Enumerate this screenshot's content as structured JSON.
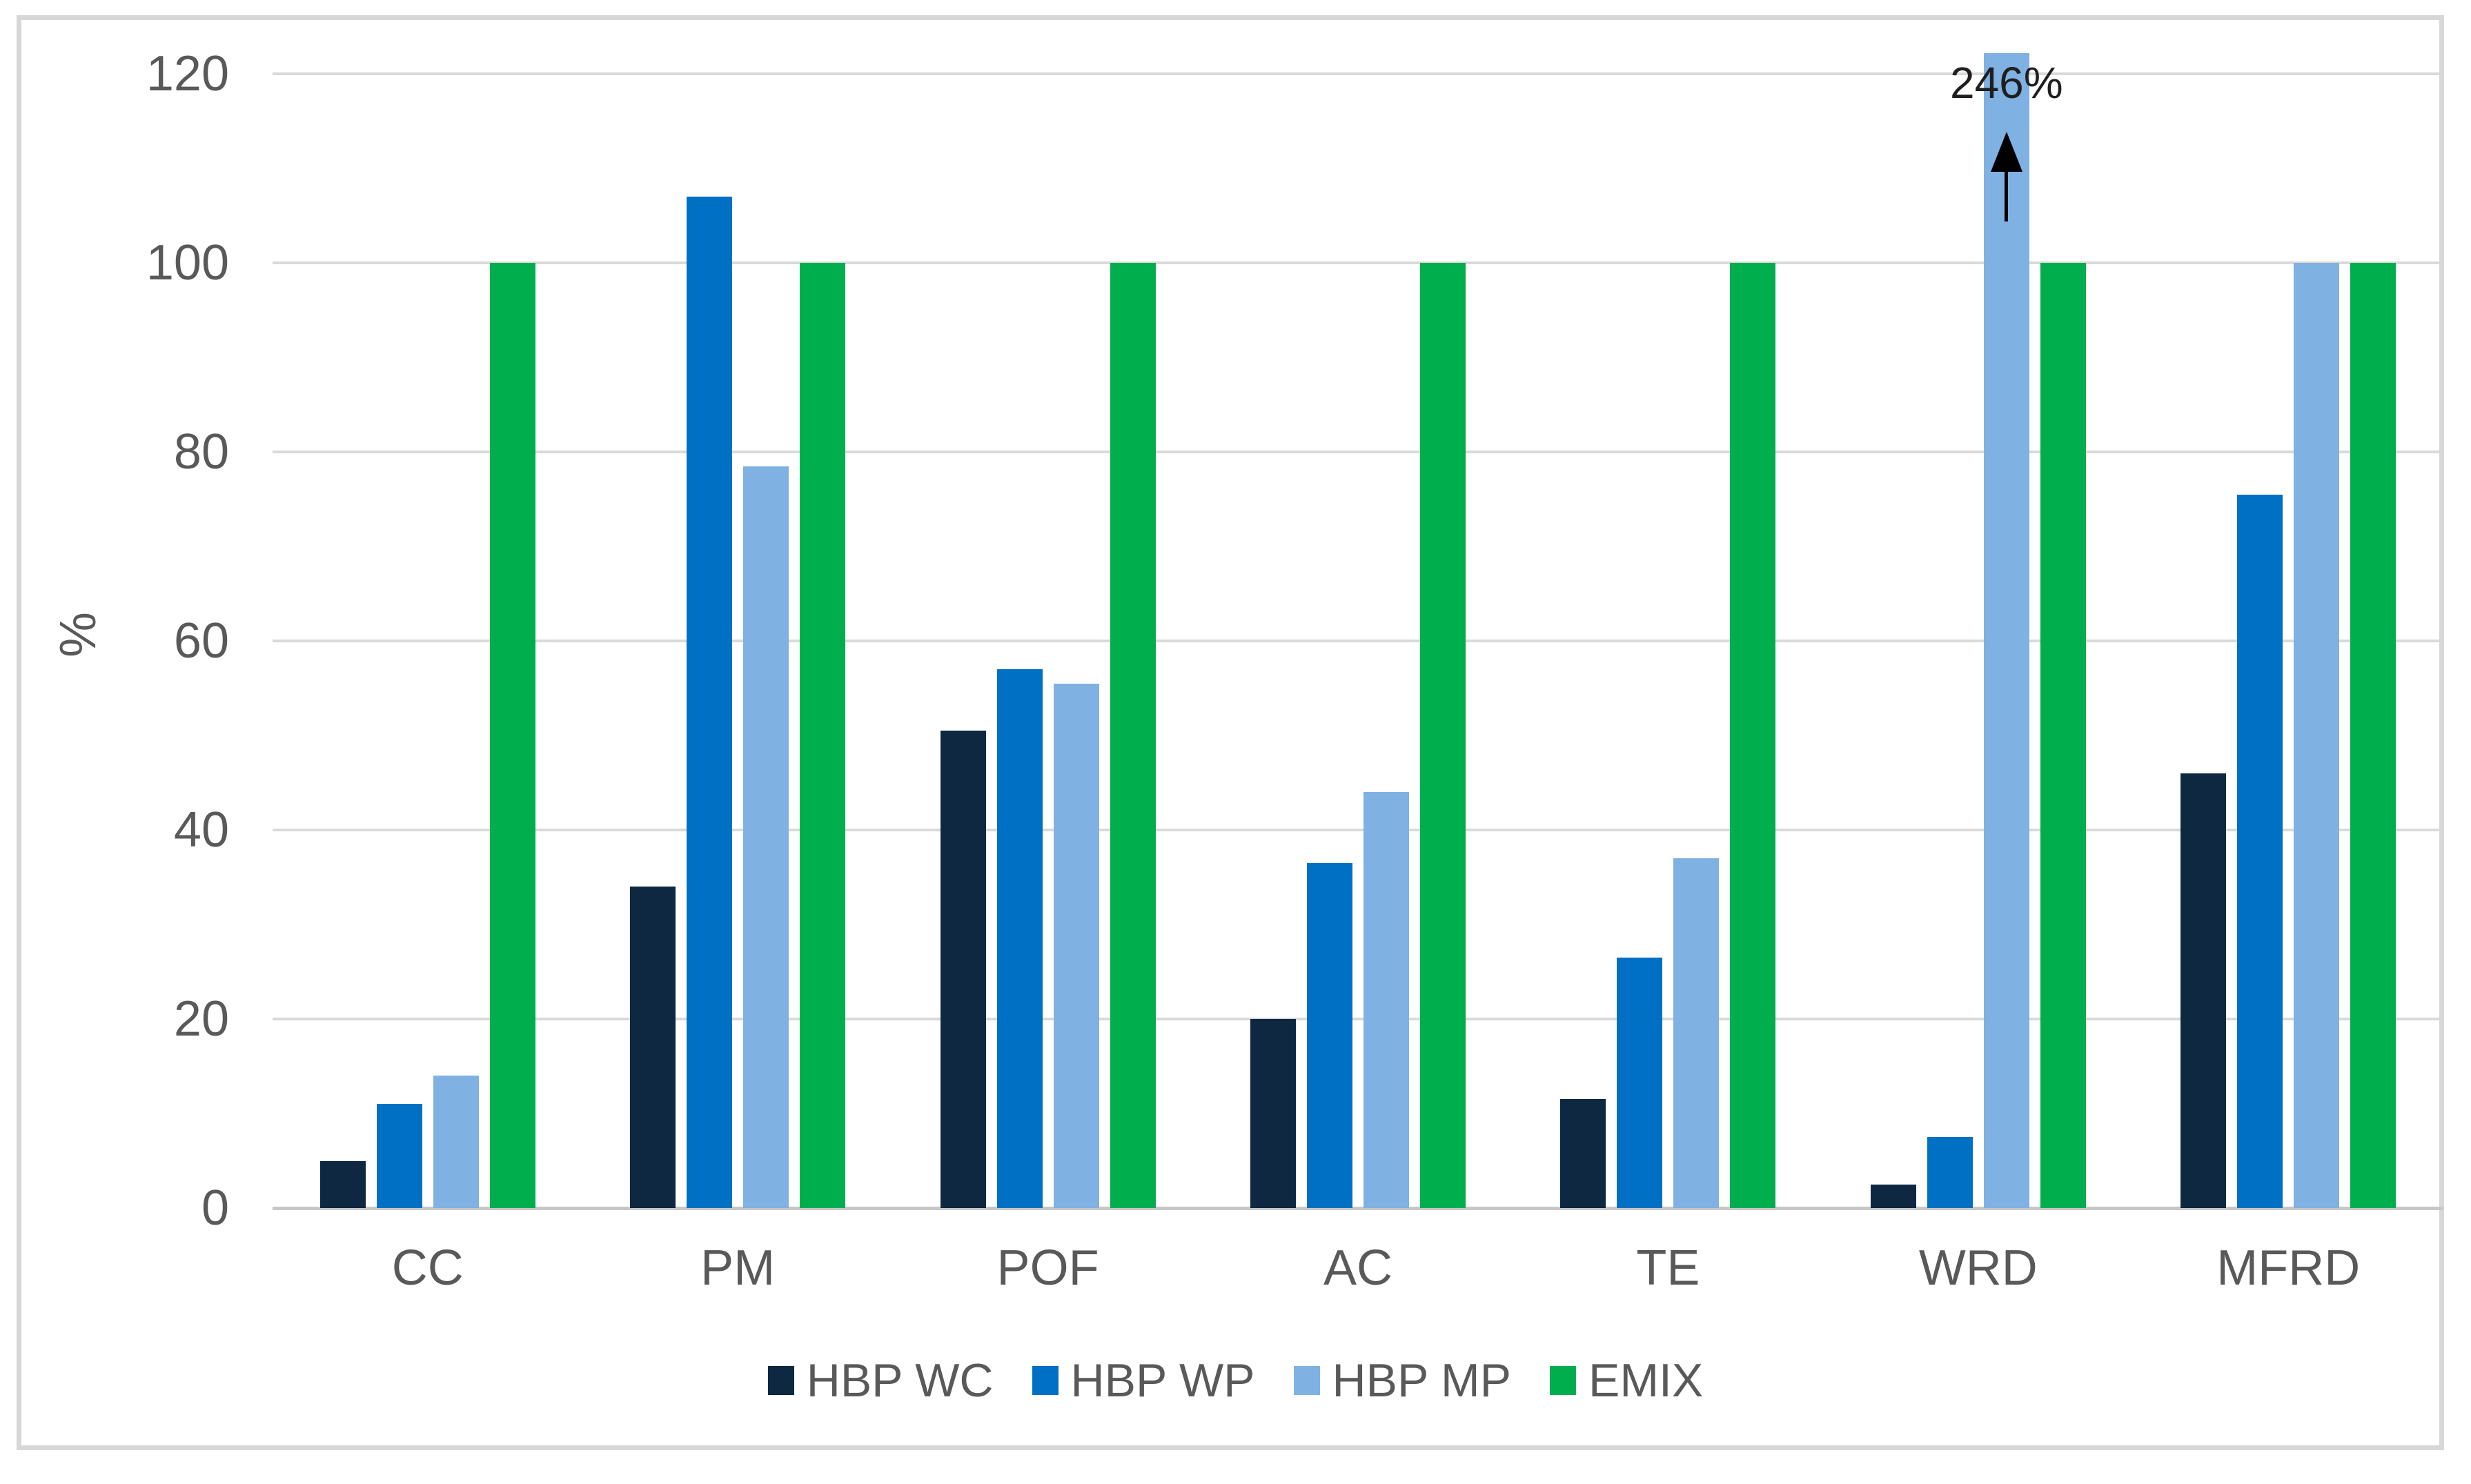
{
  "chart_data": {
    "type": "bar",
    "title": "",
    "xlabel": "",
    "ylabel": "%",
    "categories": [
      "CC",
      "PM",
      "POF",
      "AC",
      "TE",
      "WRD",
      "MFRD"
    ],
    "series": [
      {
        "name": "HBP WC",
        "color": "#0e2841",
        "values": [
          5,
          34,
          50.5,
          20,
          11.5,
          2.5,
          46
        ]
      },
      {
        "name": "HBP WP",
        "color": "#0070c5",
        "values": [
          11,
          107,
          57,
          36.5,
          26.5,
          7.5,
          75.5
        ]
      },
      {
        "name": "HBP MP",
        "color": "#7fb1e2",
        "values": [
          14,
          78.5,
          55.5,
          44,
          37,
          246,
          100
        ]
      },
      {
        "name": "EMIX",
        "color": "#00ae4e",
        "values": [
          100,
          100,
          100,
          100,
          100,
          100,
          100
        ]
      }
    ],
    "y_axis": {
      "min": 0,
      "max": 120,
      "tick_step": 20,
      "ticks": [
        0,
        20,
        40,
        60,
        80,
        100,
        120
      ]
    },
    "plot_clip_max": 122.2,
    "annotation": {
      "text": "246%",
      "category": "WRD",
      "series": "HBP MP",
      "arrow": "up"
    },
    "legend_position": "bottom",
    "grid": true,
    "colors": {
      "gridline": "#d9d9d9",
      "axis_line": "#c7c7c7",
      "tick_text": "#595959",
      "annotation_text": "#1f1f1f",
      "frame_border": "#d7d7d7",
      "background": "#ffffff"
    }
  }
}
